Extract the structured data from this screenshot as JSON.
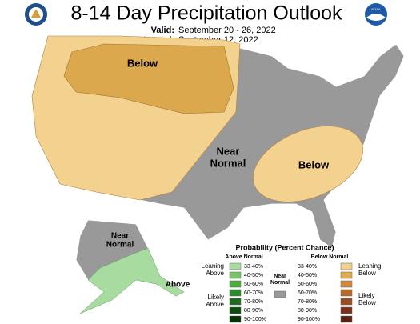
{
  "header": {
    "title": "8-14 Day Precipitation Outlook",
    "valid_label": "Valid:",
    "valid": "September 20 - 26, 2022",
    "issued_label": "Issued:",
    "issued": "September 12, 2022",
    "logo_text": "NOAA"
  },
  "map_labels": {
    "west_below": "Below",
    "central_near": [
      "Near",
      "Normal"
    ],
    "southeast_below": "Below",
    "alaska_near": [
      "Near",
      "Normal"
    ],
    "alaska_above": "Above"
  },
  "colors": {
    "near": "#999999",
    "west": "#f2d28e",
    "west_dark": "#dca84e",
    "alaska_above": "#a8dba0"
  },
  "legend": {
    "title": "Probability (Percent Chance)",
    "above_heading": "Above Normal",
    "below_heading": "Below Normal",
    "near": [
      "Near",
      "Normal"
    ],
    "leaning_above": [
      "Leaning",
      "Above"
    ],
    "likely_above": [
      "Likely",
      "Above"
    ],
    "leaning_below": [
      "Leaning",
      "Below"
    ],
    "likely_below": [
      "Likely",
      "Below"
    ],
    "bins": [
      "33-40%",
      "40-50%",
      "50-60%",
      "60-70%",
      "70-80%",
      "80-90%",
      "90-100%"
    ],
    "above_colors": [
      "#a8dba0",
      "#7cc46c",
      "#4cac3c",
      "#2c8c2c",
      "#1c6c1c",
      "#0c4c0c",
      "#043404"
    ],
    "below_colors": [
      "#f2d28e",
      "#dfac4e",
      "#d08a40",
      "#b86a2c",
      "#9c4c20",
      "#7c3018",
      "#5c2010"
    ]
  }
}
